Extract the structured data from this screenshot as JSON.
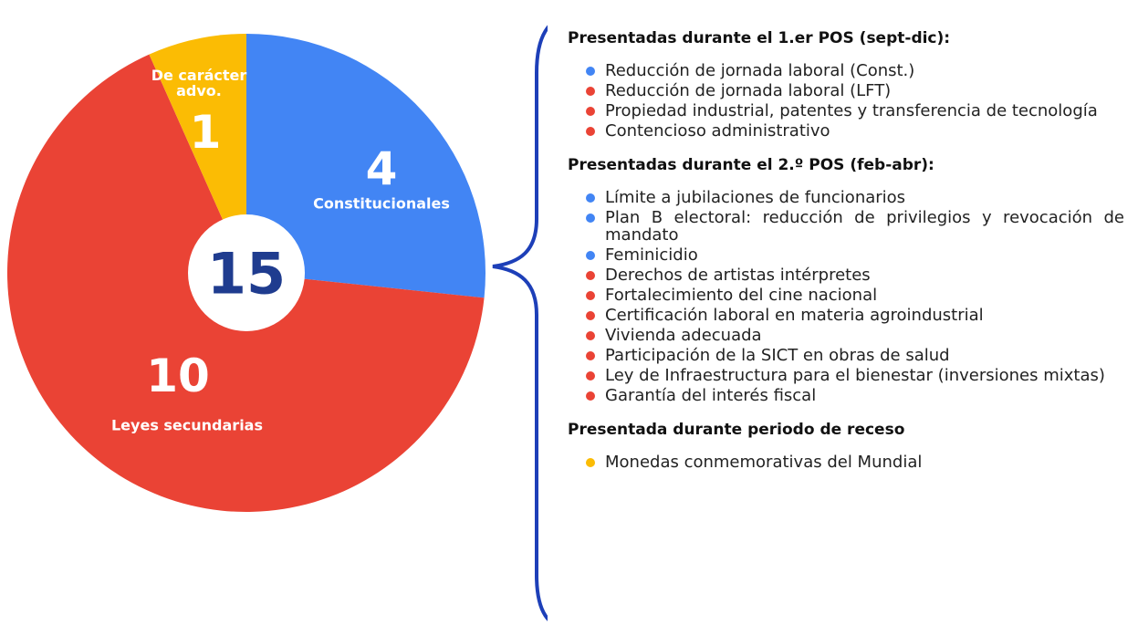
{
  "chart_data": {
    "type": "pie",
    "total": 15,
    "categories": [
      "Constitucionales",
      "Leyes secundarias",
      "De carácter advo."
    ],
    "values": [
      4,
      10,
      1
    ],
    "colors": [
      "#4285f4",
      "#ea4335",
      "#fbbc04"
    ]
  },
  "list": {
    "sections": [
      {
        "heading": "Presentadas durante el 1.er POS (sept-dic):",
        "items": [
          {
            "text": "Reducción de jornada laboral (Const.)",
            "color": "#4285f4"
          },
          {
            "text": "Reducción de jornada laboral (LFT)",
            "color": "#ea4335"
          },
          {
            "text": "Propiedad industrial, patentes y transferencia de tecnología",
            "color": "#ea4335"
          },
          {
            "text": "Contencioso administrativo",
            "color": "#ea4335"
          }
        ]
      },
      {
        "heading": "Presentadas durante el 2.º POS (feb-abr):",
        "items": [
          {
            "text": "Límite a jubilaciones de funcionarios",
            "color": "#4285f4"
          },
          {
            "text": "Plan B electoral: reducción de privilegios y revocación de mandato",
            "color": "#4285f4"
          },
          {
            "text": "Feminicidio",
            "color": "#4285f4"
          },
          {
            "text": "Derechos de artistas intérpretes",
            "color": "#ea4335"
          },
          {
            "text": "Fortalecimiento del cine nacional",
            "color": "#ea4335"
          },
          {
            "text": "Certificación laboral en materia agroindustrial",
            "color": "#ea4335"
          },
          {
            "text": "Vivienda adecuada",
            "color": "#ea4335"
          },
          {
            "text": "Participación de la SICT en obras de salud",
            "color": "#ea4335"
          },
          {
            "text": "Ley de Infraestructura para el bienestar (inversiones mixtas)",
            "color": "#ea4335"
          },
          {
            "text": "Garantía del interés fiscal",
            "color": "#ea4335"
          }
        ]
      },
      {
        "heading": "Presentada durante periodo de receso",
        "items": [
          {
            "text": "Monedas conmemorativas del Mundial",
            "color": "#fbbc04"
          }
        ]
      }
    ]
  }
}
